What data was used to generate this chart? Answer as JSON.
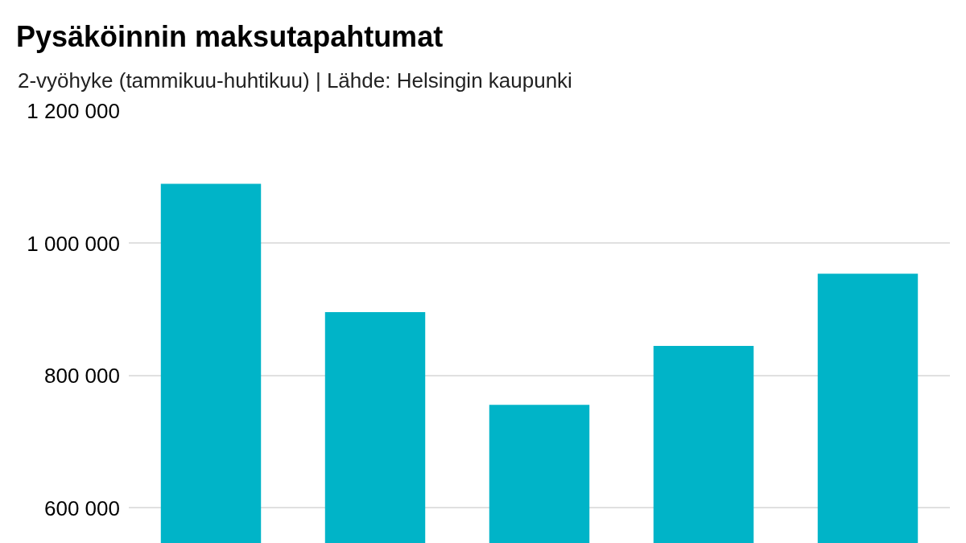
{
  "chart_data": {
    "type": "bar",
    "title": "Pysäköinnin maksutapahtumat",
    "subtitle": "2-vyöhyke (tammikuu-huhtikuu) | Lähde: Helsingin kaupunki",
    "categories": [
      null,
      null,
      null,
      null,
      null
    ],
    "values": [
      1090000,
      896000,
      756000,
      845000,
      954000
    ],
    "color": "#00b4c8",
    "ylim": [
      547000,
      1200000
    ],
    "yticks": [
      {
        "value": 600000,
        "label": "600 000"
      },
      {
        "value": 800000,
        "label": "800 000"
      },
      {
        "value": 1000000,
        "label": "1 000 000"
      },
      {
        "value": 1200000,
        "label": "1 200 000"
      }
    ],
    "grid": "y",
    "tick_labels": "y"
  }
}
